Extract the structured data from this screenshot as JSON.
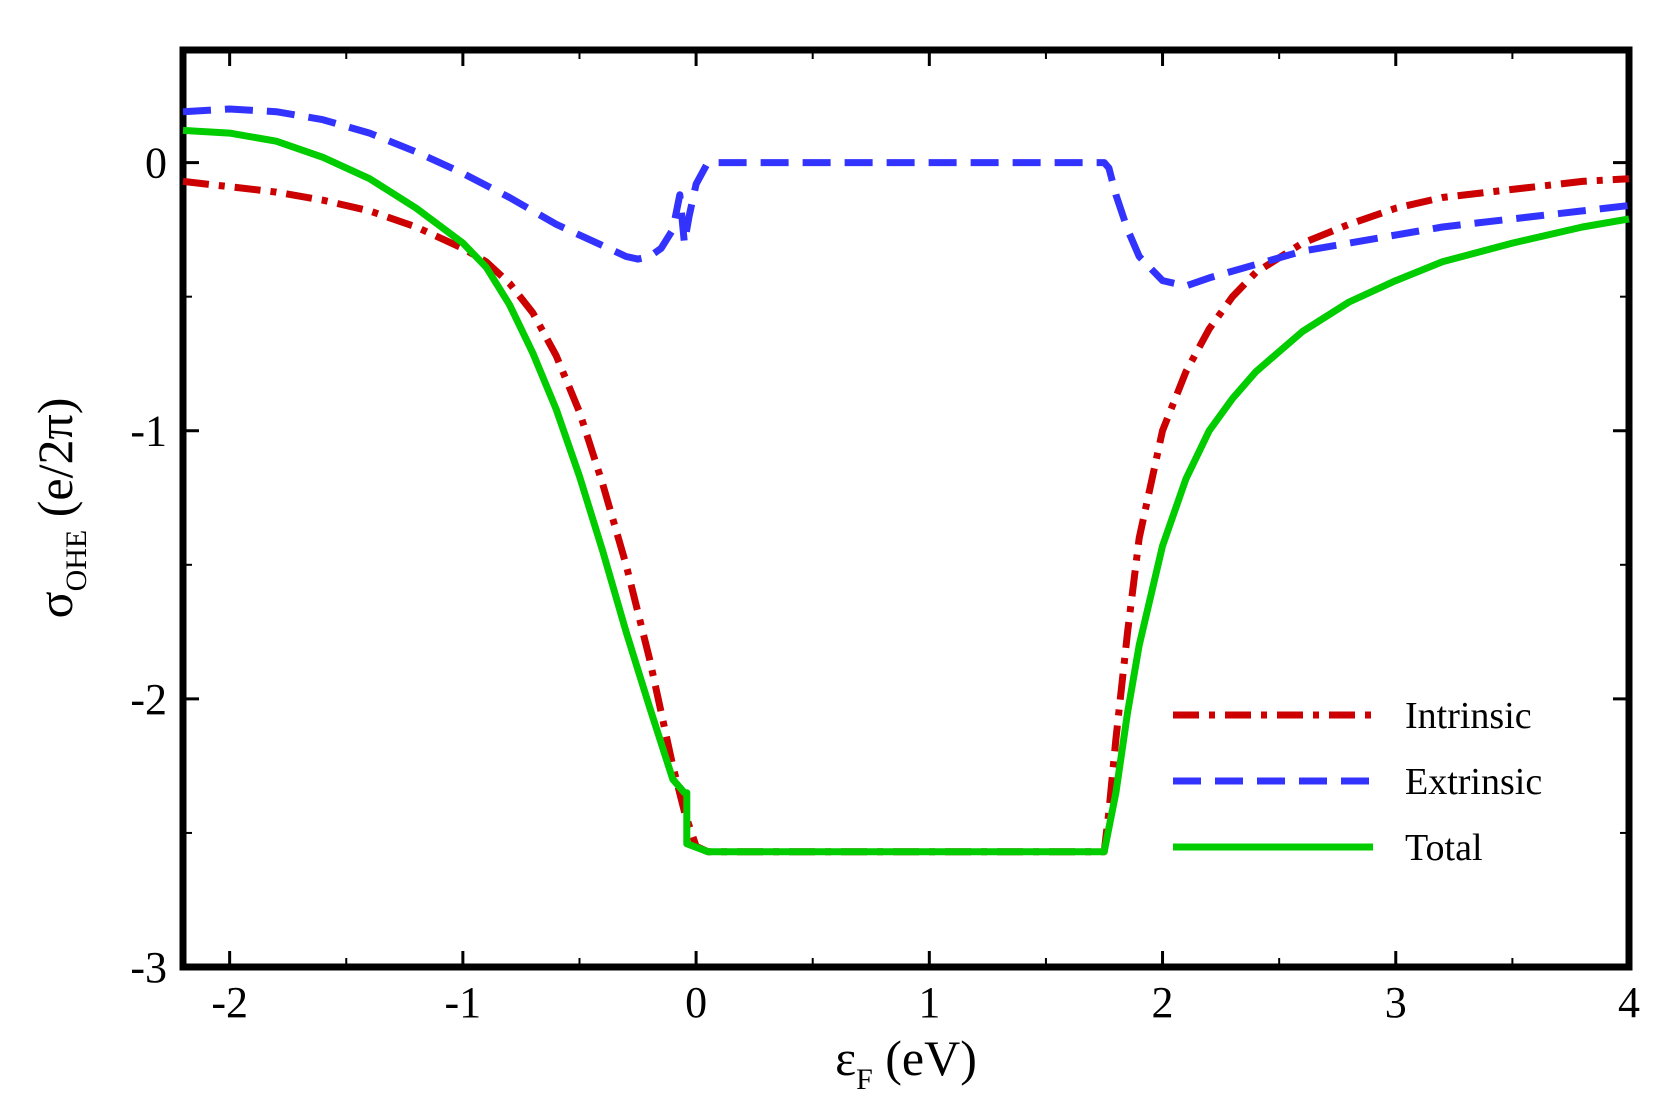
{
  "chart_data": {
    "type": "line",
    "xlabel": {
      "symbol": "ε",
      "subscript": "F",
      "rest": " (eV)"
    },
    "ylabel": {
      "symbol": "σ",
      "subscript": "OHE",
      "rest": " (e/2π)"
    },
    "xlim": [
      -2.2,
      4
    ],
    "ylim": [
      -3,
      0.42
    ],
    "xticks": [
      -2,
      -1,
      0,
      1,
      2,
      3,
      4
    ],
    "xtick_labels": [
      "-2",
      "-1",
      "0",
      "1",
      "2",
      "3",
      "4"
    ],
    "yticks": [
      -3,
      -2,
      -1,
      0
    ],
    "ytick_labels": [
      "-3",
      "-2",
      "-1",
      "0"
    ],
    "legend_position": "bottom-right",
    "series": [
      {
        "name": "Intrinsic",
        "style": "dashdot",
        "color": "#cc0000",
        "x": [
          -2.2,
          -2.0,
          -1.8,
          -1.6,
          -1.4,
          -1.2,
          -1.0,
          -0.9,
          -0.8,
          -0.7,
          -0.6,
          -0.5,
          -0.4,
          -0.3,
          -0.2,
          -0.1,
          -0.05,
          0.0,
          0.05,
          1.75,
          1.77,
          1.8,
          1.85,
          1.9,
          2.0,
          2.1,
          2.2,
          2.3,
          2.4,
          2.6,
          2.8,
          3.0,
          3.2,
          3.5,
          3.8,
          4.0
        ],
        "y": [
          -0.07,
          -0.09,
          -0.11,
          -0.14,
          -0.18,
          -0.24,
          -0.32,
          -0.37,
          -0.45,
          -0.56,
          -0.72,
          -0.93,
          -1.2,
          -1.5,
          -1.85,
          -2.25,
          -2.42,
          -2.55,
          -2.57,
          -2.57,
          -2.42,
          -2.15,
          -1.75,
          -1.4,
          -1.0,
          -0.78,
          -0.62,
          -0.5,
          -0.41,
          -0.3,
          -0.23,
          -0.17,
          -0.13,
          -0.1,
          -0.07,
          -0.06
        ]
      },
      {
        "name": "Extrinsic",
        "style": "dashed",
        "color": "#3333ff",
        "x": [
          -2.2,
          -2.0,
          -1.8,
          -1.6,
          -1.4,
          -1.2,
          -1.0,
          -0.8,
          -0.6,
          -0.4,
          -0.3,
          -0.25,
          -0.2,
          -0.15,
          -0.1,
          -0.07,
          -0.05,
          -0.03,
          0.0,
          0.05,
          1.75,
          1.77,
          1.8,
          1.85,
          1.9,
          2.0,
          2.1,
          2.2,
          2.4,
          2.6,
          2.8,
          3.0,
          3.2,
          3.5,
          3.8,
          4.0
        ],
        "y": [
          0.19,
          0.2,
          0.19,
          0.16,
          0.11,
          0.04,
          -0.04,
          -0.13,
          -0.23,
          -0.31,
          -0.35,
          -0.36,
          -0.35,
          -0.32,
          -0.25,
          -0.12,
          -0.3,
          -0.2,
          -0.08,
          0.0,
          0.0,
          -0.02,
          -0.12,
          -0.25,
          -0.35,
          -0.44,
          -0.46,
          -0.43,
          -0.38,
          -0.33,
          -0.3,
          -0.27,
          -0.24,
          -0.21,
          -0.18,
          -0.16
        ]
      },
      {
        "name": "Total",
        "style": "solid",
        "color": "#00cc00",
        "x": [
          -2.2,
          -2.0,
          -1.8,
          -1.6,
          -1.4,
          -1.2,
          -1.0,
          -0.9,
          -0.8,
          -0.7,
          -0.6,
          -0.5,
          -0.4,
          -0.3,
          -0.2,
          -0.1,
          -0.05,
          -0.04,
          -0.04,
          0.05,
          1.75,
          1.8,
          1.85,
          1.9,
          2.0,
          2.1,
          2.2,
          2.3,
          2.4,
          2.6,
          2.8,
          3.0,
          3.2,
          3.5,
          3.8,
          4.0
        ],
        "y": [
          0.12,
          0.11,
          0.08,
          0.02,
          -0.06,
          -0.17,
          -0.3,
          -0.39,
          -0.53,
          -0.71,
          -0.92,
          -1.17,
          -1.45,
          -1.75,
          -2.03,
          -2.3,
          -2.35,
          -2.35,
          -2.54,
          -2.57,
          -2.57,
          -2.35,
          -2.05,
          -1.8,
          -1.43,
          -1.18,
          -1.0,
          -0.88,
          -0.78,
          -0.63,
          -0.52,
          -0.44,
          -0.37,
          -0.3,
          -0.24,
          -0.21
        ]
      }
    ]
  }
}
